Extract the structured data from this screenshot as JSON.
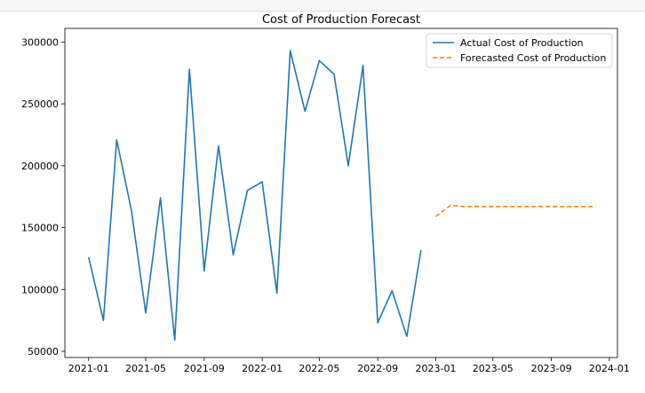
{
  "chart_data": {
    "type": "line",
    "title": "Cost of Production Forecast",
    "xlabel": "",
    "ylabel": "",
    "x_range": [
      "2020-11-12",
      "2024-01-18"
    ],
    "ylim": [
      45000,
      311000
    ],
    "x_ticks": [
      {
        "date": "2021-01-01",
        "label": "2021-01"
      },
      {
        "date": "2021-05-01",
        "label": "2021-05"
      },
      {
        "date": "2021-09-01",
        "label": "2021-09"
      },
      {
        "date": "2022-01-01",
        "label": "2022-01"
      },
      {
        "date": "2022-05-01",
        "label": "2022-05"
      },
      {
        "date": "2022-09-01",
        "label": "2022-09"
      },
      {
        "date": "2023-01-01",
        "label": "2023-01"
      },
      {
        "date": "2023-05-01",
        "label": "2023-05"
      },
      {
        "date": "2023-09-01",
        "label": "2023-09"
      },
      {
        "date": "2024-01-01",
        "label": "2024-01"
      }
    ],
    "y_ticks": [
      {
        "value": 50000,
        "label": "50000"
      },
      {
        "value": 100000,
        "label": "100000"
      },
      {
        "value": 150000,
        "label": "150000"
      },
      {
        "value": 200000,
        "label": "200000"
      },
      {
        "value": 250000,
        "label": "250000"
      },
      {
        "value": 300000,
        "label": "300000"
      }
    ],
    "legend": {
      "placement": "top-right"
    },
    "grid": false,
    "series": [
      {
        "name": "Actual Cost of Production",
        "color": "#1f77b4",
        "style": "solid",
        "x": [
          "2021-01-01",
          "2021-02-01",
          "2021-03-01",
          "2021-04-01",
          "2021-05-01",
          "2021-06-01",
          "2021-07-01",
          "2021-08-01",
          "2021-09-01",
          "2021-10-01",
          "2021-11-01",
          "2021-12-01",
          "2022-01-01",
          "2022-02-01",
          "2022-03-01",
          "2022-04-01",
          "2022-05-01",
          "2022-06-01",
          "2022-07-01",
          "2022-08-01",
          "2022-09-01",
          "2022-10-01",
          "2022-11-01",
          "2022-12-01"
        ],
        "y": [
          126000,
          75000,
          221000,
          164000,
          81000,
          174000,
          59000,
          278000,
          115000,
          216000,
          128000,
          180000,
          187000,
          97000,
          293000,
          244000,
          285000,
          274000,
          200000,
          281000,
          73000,
          99000,
          62000,
          132000
        ]
      },
      {
        "name": "Forecasted Cost of Production",
        "color": "#ff7f0e",
        "style": "dashed",
        "x": [
          "2023-01-01",
          "2023-02-01",
          "2023-03-01",
          "2023-04-01",
          "2023-05-01",
          "2023-06-01",
          "2023-07-01",
          "2023-08-01",
          "2023-09-01",
          "2023-10-01",
          "2023-11-01",
          "2023-12-01"
        ],
        "y": [
          159000,
          168000,
          167000,
          167000,
          167000,
          167000,
          167000,
          167000,
          167000,
          167000,
          167000,
          167000
        ]
      }
    ]
  }
}
